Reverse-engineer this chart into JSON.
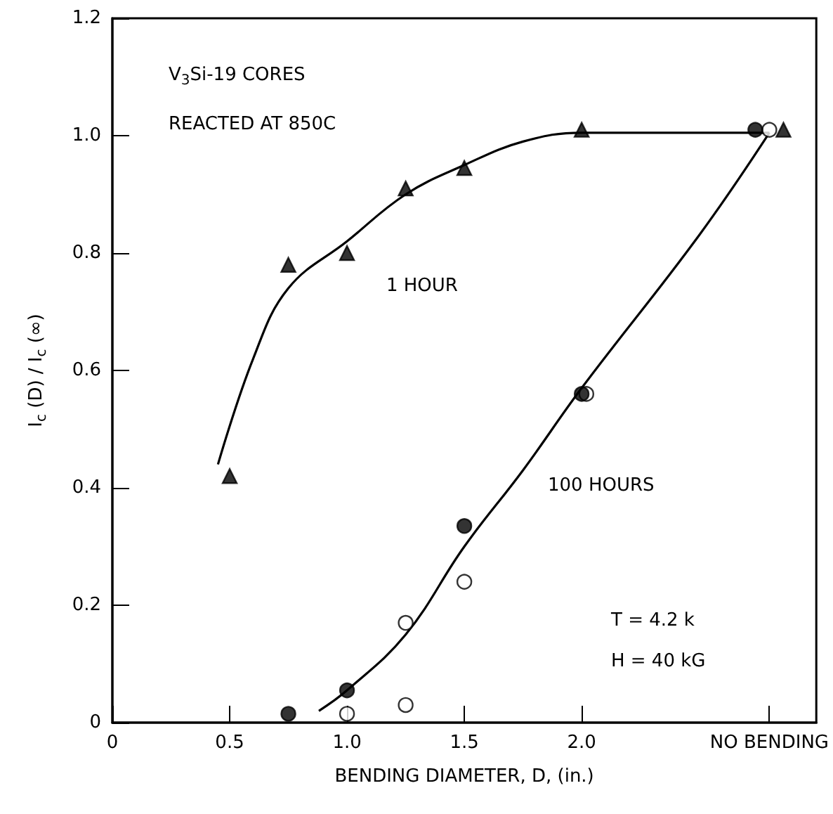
{
  "chart_data": {
    "type": "scatter",
    "xlabel": "BENDING DIAMETER, D, (in.)",
    "ylabel": "I$_{c}$ (D) / I$_{c}$ (∞)",
    "xlim": [
      0,
      3.0
    ],
    "xticks": [
      0,
      0.5,
      {
        "value": 1,
        "label": "1.0"
      },
      1.5,
      {
        "value": 2,
        "label": "2.0"
      },
      {
        "value": 2.8,
        "label": "NO BENDING"
      }
    ],
    "ylim": [
      0,
      1.2
    ],
    "yticks": [
      0,
      0.2,
      0.4,
      0.6,
      0.8,
      {
        "value": 1,
        "label": "1.0"
      },
      1.2
    ],
    "grid": false,
    "series": [
      {
        "type": "line",
        "color": "#000000",
        "marker": "none",
        "x": [
          0.45,
          0.6,
          0.75,
          1.0,
          1.25,
          1.5,
          1.75,
          2.0,
          2.8
        ],
        "values": [
          0.44,
          0.62,
          0.74,
          0.82,
          0.9,
          0.95,
          0.99,
          1.005,
          1.005
        ]
      },
      {
        "type": "line",
        "color": "#000000",
        "marker": "none",
        "x": [
          0.88,
          1.0,
          1.25,
          1.5,
          1.75,
          2.0,
          2.5,
          2.8
        ],
        "values": [
          0.02,
          0.055,
          0.15,
          0.3,
          0.43,
          0.57,
          0.83,
          1.005
        ]
      },
      {
        "color": "#000000",
        "marker": "triangle",
        "x": [
          0.5,
          0.75,
          1.0,
          1.25,
          1.5,
          2.0,
          2.86
        ],
        "values": [
          0.42,
          0.78,
          0.8,
          0.91,
          0.945,
          1.01,
          1.01
        ]
      },
      {
        "color": "#000000",
        "marker": "circle",
        "x": [
          0.75,
          1.0,
          1.5,
          2.0,
          2.74
        ],
        "values": [
          0.015,
          0.055,
          0.335,
          0.56,
          1.01
        ]
      },
      {
        "color": "#ffffff",
        "marker": "circle",
        "x": [
          1.0,
          1.25,
          1.25,
          1.5,
          2.02,
          2.8
        ],
        "values": [
          0.015,
          0.17,
          0.03,
          0.24,
          0.56,
          1.01
        ]
      }
    ],
    "annotations": [
      "V$_{3}$Si-19 CORES",
      "REACTED AT 850C",
      "1 HOUR",
      "100 HOURS",
      "T = 4.2 k",
      "H = 40 kG"
    ]
  }
}
